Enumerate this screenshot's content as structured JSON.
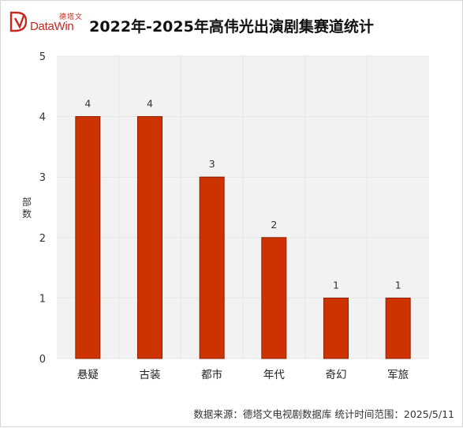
{
  "header": {
    "logo_cn": "德塔文",
    "logo_en": "DataWin"
  },
  "title": "2022年-2025年高伟光出演剧集赛道统计",
  "footer": {
    "source": "数据来源：德塔文电视剧数据库 统计时间范围：2025/5/11"
  },
  "colors": {
    "bar": "#cc3300",
    "bar_edge": "#8f1f00",
    "grid": "#e6e6e6",
    "plot_bg": "#f2f2f2",
    "brand": "#c8281e"
  },
  "chart_data": {
    "type": "bar",
    "categories": [
      "悬疑",
      "古装",
      "都市",
      "年代",
      "奇幻",
      "军旅"
    ],
    "values": [
      4,
      4,
      3,
      2,
      1,
      1
    ],
    "ylabel": "部数",
    "ylim": [
      0,
      5
    ],
    "yticks": [
      0,
      1,
      2,
      3,
      4,
      5
    ],
    "grid": true
  }
}
